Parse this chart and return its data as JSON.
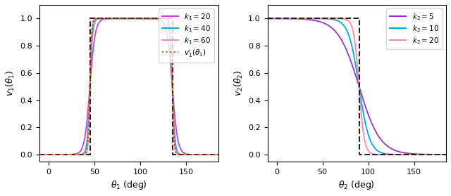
{
  "left_plot": {
    "k1_values": [
      20,
      40,
      60
    ],
    "k1_colors": [
      "#cc44cc",
      "#00aadd",
      "#ff88aa"
    ],
    "lower_deg": 45.0,
    "upper_deg": 135.0,
    "dashed_step_color": "#222222",
    "dotted_color": "#cc5500",
    "dotted_k": 60,
    "xlabel": "$\\theta_1$ (deg)",
    "ylabel": "$v_1(\\theta_1)$",
    "xlim": [
      -10,
      185
    ],
    "ylim": [
      -0.05,
      1.1
    ],
    "xticks": [
      0,
      50,
      100,
      150
    ],
    "yticks": [
      0,
      0.2,
      0.4,
      0.6,
      0.8,
      1.0
    ]
  },
  "right_plot": {
    "k2_values": [
      5,
      10,
      20
    ],
    "k2_colors": [
      "#9933cc",
      "#00aadd",
      "#ff88aa"
    ],
    "threshold_deg": 90.0,
    "dashed_step_color": "#222222",
    "xlabel": "$\\theta_2$ (deg)",
    "ylabel": "$v_2(\\theta_2)$",
    "xlim": [
      -10,
      185
    ],
    "ylim": [
      -0.05,
      1.1
    ],
    "xticks": [
      0,
      50,
      100,
      150
    ],
    "yticks": [
      0,
      0.2,
      0.4,
      0.6,
      0.8,
      1.0
    ]
  },
  "figsize": [
    6.4,
    2.79
  ],
  "dpi": 100
}
